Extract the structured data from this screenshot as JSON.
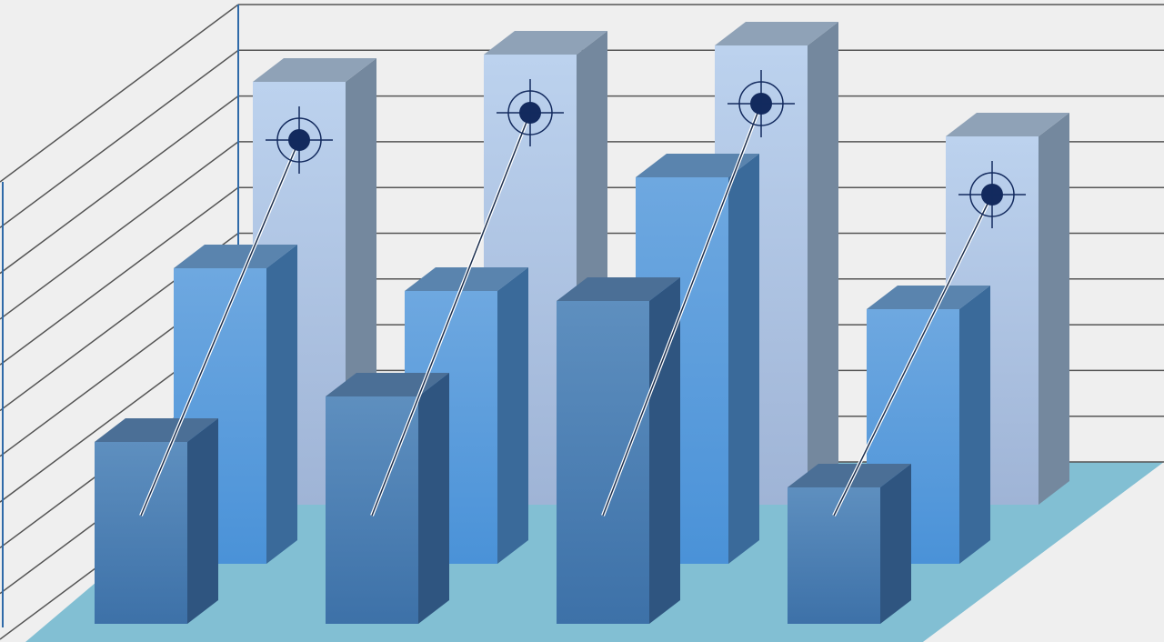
{
  "chart_data": {
    "type": "bar",
    "style": "3d-clustered-depth",
    "title": "",
    "xlabel": "",
    "ylabel": "",
    "categories": [
      "",
      "",
      "",
      ""
    ],
    "ylim": [
      0,
      10
    ],
    "grid": true,
    "legend": "none",
    "series": [
      {
        "row": "back",
        "values": [
          9.3,
          9.9,
          10.1,
          8.1
        ],
        "color": "#b6cdeb",
        "marker": "crosshair-target"
      },
      {
        "row": "middle",
        "values": [
          6.5,
          6.0,
          8.5,
          5.6
        ],
        "color": "#5c9fe0"
      },
      {
        "row": "front",
        "values": [
          4.0,
          5.0,
          7.1,
          3.0
        ],
        "color": "#4a80b8"
      }
    ],
    "floor_color": "#82bfd3",
    "wall_color": "#efefef",
    "gridline_color": "#555555",
    "target_color": "#132a5e"
  }
}
